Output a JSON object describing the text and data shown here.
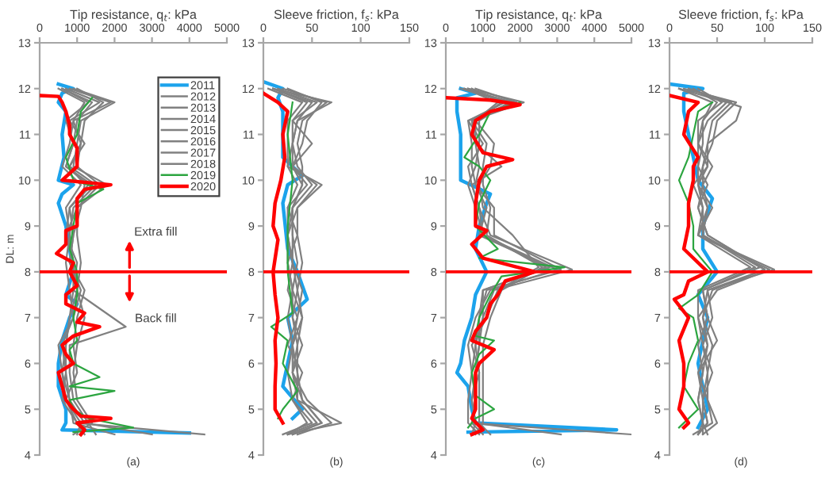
{
  "chart_data": [
    {
      "type": "line",
      "title": "Tip resistance, q$_{t}$: kPa",
      "xlabel": "(a)",
      "ylabel": "DL: m",
      "xlim": [
        0,
        5000
      ],
      "xticks": [
        0,
        1000,
        2000,
        3000,
        4000,
        5000
      ],
      "ylim": [
        4,
        13
      ],
      "yticks": [
        4,
        5,
        6,
        7,
        8,
        9,
        10,
        11,
        12,
        13
      ],
      "legend": "top right",
      "annotations": [
        "Extra fill",
        "Back fill"
      ],
      "ref_lines": [
        {
          "axis": "y",
          "value": 8,
          "color": "#ff0000"
        }
      ],
      "series": [
        {
          "name": "2011",
          "color": "#1ca3ec",
          "x": [
            500,
            900,
            600,
            500,
            700,
            600,
            650,
            500,
            900,
            600,
            500,
            700,
            800,
            900,
            700,
            1000,
            800,
            600,
            500,
            500,
            700,
            700,
            600,
            4000
          ],
          "values": [
            12.1,
            12.0,
            11.9,
            11.7,
            11.5,
            11.0,
            10.5,
            10.0,
            9.9,
            9.7,
            9.5,
            9.0,
            8.5,
            8.0,
            7.5,
            7.3,
            7.0,
            6.5,
            6.0,
            5.5,
            5.0,
            4.7,
            4.55,
            4.48
          ]
        },
        {
          "name": "2012",
          "color": "#808080",
          "x": [
            800,
            1900,
            900,
            1100,
            800,
            1500,
            900,
            800,
            900,
            1000,
            800,
            700,
            600,
            700,
            1000,
            4400
          ],
          "values": [
            12.0,
            11.7,
            11.3,
            10.8,
            10.3,
            9.9,
            9.4,
            8.8,
            8.2,
            7.6,
            7.0,
            6.4,
            5.8,
            5.2,
            4.7,
            4.45
          ]
        },
        {
          "name": "2013",
          "color": "#808080",
          "x": [
            600,
            1400,
            1000,
            900,
            700,
            1300,
            800,
            900,
            800,
            1100,
            900,
            600,
            700,
            800,
            1200,
            3000
          ],
          "values": [
            12.0,
            11.7,
            11.3,
            10.8,
            10.3,
            9.9,
            9.4,
            8.8,
            8.2,
            7.6,
            7.0,
            6.4,
            5.8,
            5.2,
            4.7,
            4.45
          ]
        },
        {
          "name": "2014",
          "color": "#808080",
          "x": [
            900,
            2000,
            1100,
            1000,
            900,
            1800,
            1000,
            700,
            1000,
            900,
            2300,
            800,
            800,
            900,
            1300,
            1500
          ],
          "values": [
            12.0,
            11.7,
            11.3,
            10.8,
            10.3,
            9.9,
            9.4,
            8.8,
            8.2,
            7.6,
            6.8,
            6.4,
            5.8,
            5.2,
            4.7,
            4.45
          ]
        },
        {
          "name": "2015",
          "color": "#808080",
          "x": [
            700,
            1600,
            800,
            1200,
            800,
            1200,
            1100,
            900,
            800,
            1200,
            1000,
            900,
            1000,
            700,
            1100,
            1000
          ],
          "values": [
            12.0,
            11.7,
            11.3,
            10.8,
            10.3,
            9.9,
            9.4,
            8.8,
            8.2,
            7.6,
            7.0,
            6.4,
            5.8,
            5.2,
            4.7,
            4.45
          ]
        },
        {
          "name": "2016",
          "color": "#808080",
          "x": [
            500,
            1200,
            900,
            800,
            600,
            1100,
            700,
            800,
            700,
            800,
            900,
            500,
            600,
            800,
            900,
            2000
          ],
          "values": [
            12.0,
            11.7,
            11.3,
            10.8,
            10.3,
            9.9,
            9.4,
            8.8,
            8.2,
            7.6,
            7.0,
            6.4,
            5.8,
            5.2,
            4.7,
            4.45
          ]
        },
        {
          "name": "2017",
          "color": "#808080",
          "x": [
            1000,
            1700,
            1200,
            1100,
            1000,
            1600,
            1000,
            1000,
            1100,
            1000,
            1200,
            1000,
            900,
            1000,
            1400,
            900
          ],
          "values": [
            12.0,
            11.7,
            11.3,
            10.8,
            10.3,
            9.9,
            9.4,
            8.8,
            8.2,
            7.6,
            7.0,
            6.4,
            5.8,
            5.2,
            4.7,
            4.45
          ]
        },
        {
          "name": "2018",
          "color": "#808080",
          "x": [
            600,
            1300,
            700,
            900,
            700,
            1400,
            800,
            700,
            900,
            900,
            800,
            700,
            700,
            600,
            1000,
            1200
          ],
          "values": [
            12.0,
            11.7,
            11.3,
            10.8,
            10.3,
            9.9,
            9.4,
            8.8,
            8.2,
            7.6,
            7.0,
            6.4,
            5.8,
            5.2,
            4.7,
            4.45
          ]
        },
        {
          "name": "2019",
          "color": "#2ca540",
          "x": [
            1400,
            1100,
            1000,
            700,
            900,
            1700,
            1000,
            900,
            800,
            1000,
            1000,
            900,
            1000,
            800,
            900,
            1600,
            800,
            2000,
            800,
            900,
            1300,
            2500,
            900
          ],
          "values": [
            11.8,
            11.5,
            11.0,
            10.5,
            10.0,
            9.8,
            9.5,
            9.0,
            8.5,
            8.0,
            7.5,
            7.0,
            6.5,
            6.3,
            6.0,
            5.7,
            5.5,
            5.4,
            5.2,
            5.0,
            4.8,
            4.6,
            4.5
          ]
        },
        {
          "name": "2020",
          "color": "#ff0000",
          "x": [
            0,
            500,
            600,
            700,
            800,
            800,
            1000,
            1000,
            600,
            1900,
            1200,
            1000,
            1000,
            1000,
            700,
            700,
            450,
            900,
            800,
            1000,
            700,
            700,
            1200,
            1000,
            1600,
            900,
            600,
            700,
            900,
            500,
            600,
            700,
            900,
            1100,
            1900,
            1000,
            1200,
            1100
          ],
          "values": [
            11.85,
            11.83,
            11.7,
            11.5,
            11.2,
            11.0,
            10.7,
            10.3,
            10.0,
            9.9,
            9.8,
            9.6,
            9.3,
            9.0,
            8.9,
            8.6,
            8.4,
            8.2,
            8.0,
            7.7,
            7.5,
            7.3,
            7.1,
            6.9,
            6.8,
            6.6,
            6.4,
            6.2,
            6.0,
            5.8,
            5.5,
            5.2,
            5.0,
            4.85,
            4.8,
            4.7,
            4.55,
            4.45
          ]
        }
      ]
    },
    {
      "type": "line",
      "title": "Sleeve friction, f$_{s}$: kPa",
      "xlabel": "(b)",
      "xlim": [
        0,
        150
      ],
      "xticks": [
        0,
        50,
        100,
        150
      ],
      "ylim": [
        4,
        13
      ],
      "yticks": [
        4,
        5,
        6,
        7,
        8,
        9,
        10,
        11,
        12,
        13
      ],
      "ref_lines": [
        {
          "axis": "y",
          "value": 8,
          "color": "#ff0000"
        }
      ],
      "series": [
        {
          "color": "#1ca3ec",
          "x": [
            0,
            20,
            15,
            20,
            20,
            40,
            25,
            20,
            25,
            35,
            45,
            25,
            30,
            25,
            20,
            40,
            30
          ],
          "values": [
            12.15,
            12.0,
            11.8,
            11.5,
            10.5,
            10.1,
            9.9,
            9.5,
            8.5,
            8.0,
            7.4,
            7.0,
            6.5,
            6.0,
            5.5,
            5.0,
            4.8
          ]
        },
        {
          "color": "#808080",
          "x": [
            10,
            70,
            35,
            30,
            35,
            50,
            30,
            30,
            30,
            35,
            30,
            35,
            30,
            40,
            60,
            30
          ],
          "values": [
            12.0,
            11.7,
            11.3,
            10.8,
            10.3,
            9.9,
            9.4,
            8.8,
            8.2,
            7.6,
            7.0,
            6.4,
            5.8,
            5.2,
            4.7,
            4.45
          ]
        },
        {
          "color": "#808080",
          "x": [
            15,
            55,
            30,
            50,
            30,
            45,
            25,
            35,
            25,
            30,
            40,
            30,
            35,
            35,
            80,
            25
          ],
          "values": [
            12.0,
            11.7,
            11.3,
            10.8,
            10.3,
            9.9,
            9.4,
            8.8,
            8.2,
            7.6,
            7.0,
            6.4,
            5.8,
            5.2,
            4.7,
            4.45
          ]
        },
        {
          "color": "#808080",
          "x": [
            5,
            40,
            25,
            25,
            25,
            60,
            35,
            25,
            30,
            40,
            35,
            25,
            40,
            30,
            50,
            20
          ],
          "values": [
            12.0,
            11.7,
            11.3,
            10.8,
            10.3,
            9.9,
            9.4,
            8.8,
            8.2,
            7.6,
            7.0,
            6.4,
            5.8,
            5.2,
            4.7,
            4.45
          ]
        },
        {
          "color": "#808080",
          "x": [
            20,
            65,
            40,
            35,
            40,
            40,
            30,
            30,
            35,
            30,
            30,
            40,
            30,
            45,
            70,
            35
          ],
          "values": [
            12.0,
            11.7,
            11.3,
            10.8,
            10.3,
            9.9,
            9.4,
            8.8,
            8.2,
            7.6,
            7.0,
            6.4,
            5.8,
            5.2,
            4.7,
            4.45
          ]
        },
        {
          "color": "#808080",
          "x": [
            10,
            45,
            30,
            30,
            25,
            35,
            25,
            25,
            25,
            30,
            25,
            30,
            25,
            30,
            45,
            25
          ],
          "values": [
            12.0,
            11.7,
            11.3,
            10.8,
            10.3,
            9.9,
            9.4,
            8.8,
            8.2,
            7.6,
            7.0,
            6.4,
            5.8,
            5.2,
            4.7,
            4.45
          ]
        },
        {
          "color": "#808080",
          "x": [
            25,
            60,
            45,
            40,
            30,
            55,
            35,
            35,
            40,
            35,
            40,
            35,
            35,
            40,
            60,
            30
          ],
          "values": [
            12.0,
            11.7,
            11.3,
            10.8,
            10.3,
            9.9,
            9.4,
            8.8,
            8.2,
            7.6,
            7.0,
            6.4,
            5.8,
            5.2,
            4.7,
            4.45
          ]
        },
        {
          "color": "#808080",
          "x": [
            10,
            50,
            35,
            30,
            30,
            40,
            30,
            25,
            30,
            25,
            35,
            30,
            30,
            35,
            55,
            25
          ],
          "values": [
            12.0,
            11.7,
            11.3,
            10.8,
            10.3,
            9.9,
            9.4,
            8.8,
            8.2,
            7.6,
            7.0,
            6.4,
            5.8,
            5.2,
            4.7,
            4.45
          ]
        },
        {
          "color": "#2ca540",
          "x": [
            30,
            25,
            30,
            25,
            25,
            30,
            8,
            25,
            20,
            35,
            20,
            15
          ],
          "values": [
            11.7,
            11.0,
            10.0,
            9.0,
            8.0,
            7.1,
            6.8,
            6.5,
            6.0,
            5.4,
            5.0,
            4.8
          ]
        },
        {
          "color": "#ff0000",
          "x": [
            0,
            15,
            25,
            20,
            22,
            18,
            12,
            10,
            15,
            10,
            12,
            15,
            12,
            13,
            12,
            12,
            20
          ],
          "values": [
            11.9,
            11.7,
            11.5,
            11.0,
            10.5,
            10.0,
            9.5,
            9.0,
            8.7,
            8.0,
            7.5,
            7.0,
            6.5,
            6.0,
            5.5,
            5.0,
            4.7
          ]
        }
      ]
    },
    {
      "type": "line",
      "title": "Tip resistance, q$_{t}$: kPa",
      "xlabel": "(c)",
      "xlim": [
        0,
        5000
      ],
      "xticks": [
        0,
        1000,
        2000,
        3000,
        4000,
        5000
      ],
      "ylim": [
        4,
        13
      ],
      "yticks": [
        4,
        5,
        6,
        7,
        8,
        9,
        10,
        11,
        12,
        13
      ],
      "ref_lines": [
        {
          "axis": "y",
          "value": 8,
          "color": "#ff0000"
        }
      ],
      "series": [
        {
          "color": "#1ca3ec",
          "x": [
            400,
            800,
            300,
            300,
            400,
            400,
            400,
            1200,
            1100,
            900,
            800,
            1100,
            800,
            700,
            500,
            400,
            300,
            600,
            700,
            800,
            4600,
            600
          ],
          "values": [
            12.0,
            11.9,
            11.8,
            11.5,
            11.0,
            10.5,
            10.0,
            9.7,
            9.5,
            9.0,
            8.5,
            8.0,
            7.5,
            7.0,
            6.5,
            6.0,
            5.8,
            5.5,
            5.0,
            4.7,
            4.55,
            4.5
          ]
        },
        {
          "color": "#808080",
          "x": [
            600,
            2100,
            700,
            800,
            900,
            800,
            1100,
            900,
            2800,
            1000,
            900,
            800,
            700,
            800,
            700,
            5000
          ],
          "values": [
            12.0,
            11.7,
            11.3,
            10.8,
            10.3,
            9.9,
            9.4,
            8.8,
            8.1,
            7.6,
            7.0,
            6.4,
            5.8,
            5.2,
            4.7,
            4.45
          ]
        },
        {
          "color": "#808080",
          "x": [
            500,
            1800,
            600,
            1000,
            600,
            700,
            900,
            1200,
            3400,
            1300,
            1000,
            900,
            800,
            700,
            800,
            3100
          ],
          "values": [
            12.0,
            11.7,
            11.3,
            10.8,
            10.3,
            9.9,
            9.4,
            8.8,
            8.05,
            7.6,
            7.0,
            6.4,
            5.8,
            5.2,
            4.7,
            4.45
          ]
        },
        {
          "color": "#808080",
          "x": [
            700,
            1500,
            800,
            1300,
            1200,
            900,
            1000,
            1800,
            2500,
            1400,
            1100,
            700,
            900,
            900,
            900,
            1200
          ],
          "values": [
            12.0,
            11.7,
            11.3,
            10.8,
            10.3,
            9.9,
            9.4,
            8.8,
            8.1,
            7.6,
            7.0,
            6.4,
            5.8,
            5.2,
            4.7,
            4.45
          ]
        },
        {
          "color": "#808080",
          "x": [
            400,
            1700,
            900,
            900,
            800,
            600,
            800,
            1000,
            3000,
            1200,
            800,
            600,
            700,
            600,
            600,
            900
          ],
          "values": [
            12.0,
            11.7,
            11.3,
            10.8,
            10.3,
            9.9,
            9.4,
            8.8,
            8.05,
            7.6,
            7.0,
            6.4,
            5.8,
            5.2,
            4.7,
            4.45
          ]
        },
        {
          "color": "#808080",
          "x": [
            800,
            1900,
            700,
            1100,
            1000,
            1000,
            1200,
            1100,
            2600,
            1500,
            1200,
            1000,
            1000,
            1000,
            1000,
            800
          ],
          "values": [
            12.0,
            11.7,
            11.3,
            10.8,
            10.3,
            9.9,
            9.4,
            8.8,
            8.1,
            7.6,
            7.0,
            6.4,
            5.8,
            5.2,
            4.7,
            4.45
          ]
        },
        {
          "color": "#808080",
          "x": [
            600,
            1600,
            600,
            700,
            700,
            800,
            1300,
            1300,
            3100,
            1100,
            900,
            900,
            800,
            800,
            700,
            1000
          ],
          "values": [
            12.0,
            11.7,
            11.3,
            10.8,
            10.3,
            9.9,
            9.4,
            8.8,
            8.05,
            7.6,
            7.0,
            6.4,
            5.8,
            5.2,
            4.7,
            4.45
          ]
        },
        {
          "color": "#808080",
          "x": [
            500,
            1400,
            800,
            800,
            1500,
            700,
            900,
            1000,
            2700,
            1000,
            1000,
            800,
            900,
            700,
            800,
            700
          ],
          "values": [
            12.0,
            11.7,
            11.3,
            10.8,
            10.3,
            9.9,
            9.4,
            8.8,
            8.1,
            7.6,
            7.0,
            6.4,
            5.8,
            5.2,
            4.7,
            4.45
          ]
        },
        {
          "color": "#2ca540",
          "x": [
            2000,
            1200,
            900,
            500,
            900,
            1200,
            900,
            800,
            1400,
            900,
            3200,
            1500,
            1200,
            900,
            800,
            1300,
            900,
            700,
            800,
            1300,
            800,
            600
          ],
          "values": [
            11.7,
            11.5,
            11.0,
            10.5,
            10.3,
            10.0,
            9.5,
            9.0,
            8.5,
            8.3,
            8.1,
            7.9,
            7.5,
            7.0,
            6.6,
            6.5,
            6.2,
            5.8,
            5.3,
            5.0,
            4.8,
            4.6
          ]
        },
        {
          "color": "#ff0000",
          "x": [
            0,
            1200,
            2000,
            1200,
            800,
            700,
            1000,
            1800,
            1100,
            900,
            800,
            800,
            1100,
            700,
            1000,
            2400,
            1600,
            1400,
            1200,
            1100,
            800,
            700,
            1300,
            900,
            800,
            800,
            800,
            700,
            1000,
            700
          ],
          "values": [
            11.8,
            11.75,
            11.65,
            11.5,
            11.3,
            11.0,
            10.6,
            10.45,
            10.3,
            10.0,
            9.5,
            9.0,
            8.9,
            8.6,
            8.3,
            8.0,
            7.8,
            7.5,
            7.3,
            7.0,
            6.7,
            6.5,
            6.3,
            6.0,
            5.8,
            5.5,
            5.0,
            4.8,
            4.55,
            4.45
          ]
        }
      ]
    },
    {
      "type": "line",
      "title": "Sleeve friction, f$_{s}$: kPa",
      "xlabel": "(d)",
      "xlim": [
        0,
        150
      ],
      "xticks": [
        0,
        50,
        100,
        150
      ],
      "ylim": [
        4,
        13
      ],
      "yticks": [
        4,
        5,
        6,
        7,
        8,
        9,
        10,
        11,
        12,
        13
      ],
      "ref_lines": [
        {
          "axis": "y",
          "value": 8,
          "color": "#ff0000"
        }
      ],
      "series": [
        {
          "color": "#1ca3ec",
          "x": [
            0,
            35,
            15,
            15,
            20,
            30,
            45,
            40,
            35,
            35,
            50,
            30,
            40,
            35,
            30,
            35,
            40,
            35,
            30
          ],
          "values": [
            12.1,
            12.0,
            11.9,
            11.5,
            11.0,
            10.0,
            9.6,
            9.3,
            9.0,
            8.5,
            8.0,
            7.5,
            7.0,
            6.5,
            6.0,
            5.5,
            5.0,
            4.8,
            4.6
          ]
        },
        {
          "color": "#808080",
          "x": [
            20,
            75,
            70,
            40,
            40,
            30,
            35,
            30,
            110,
            40,
            45,
            35,
            40,
            35,
            40,
            30
          ],
          "values": [
            12.0,
            11.6,
            11.3,
            10.8,
            10.3,
            9.9,
            9.4,
            8.8,
            8.05,
            7.6,
            7.0,
            6.4,
            5.8,
            5.2,
            4.7,
            4.45
          ]
        },
        {
          "color": "#808080",
          "x": [
            10,
            60,
            40,
            30,
            45,
            35,
            40,
            35,
            100,
            45,
            35,
            40,
            35,
            30,
            35,
            35
          ],
          "values": [
            12.0,
            11.7,
            11.3,
            10.8,
            10.3,
            9.9,
            9.4,
            8.8,
            8.05,
            7.6,
            7.0,
            6.4,
            5.8,
            5.2,
            4.7,
            4.45
          ]
        },
        {
          "color": "#808080",
          "x": [
            25,
            50,
            35,
            35,
            30,
            40,
            30,
            40,
            95,
            35,
            40,
            50,
            30,
            40,
            45,
            25
          ],
          "values": [
            12.0,
            11.7,
            11.3,
            10.8,
            10.3,
            9.9,
            9.4,
            8.8,
            8.1,
            7.6,
            7.0,
            6.5,
            5.8,
            5.2,
            4.7,
            4.45
          ]
        },
        {
          "color": "#808080",
          "x": [
            15,
            70,
            50,
            45,
            35,
            30,
            45,
            30,
            105,
            50,
            30,
            35,
            45,
            35,
            40,
            30
          ],
          "values": [
            12.0,
            11.7,
            11.3,
            10.8,
            10.3,
            9.9,
            9.4,
            8.8,
            8.05,
            7.6,
            7.0,
            6.4,
            5.8,
            5.2,
            4.7,
            4.45
          ]
        },
        {
          "color": "#808080",
          "x": [
            30,
            55,
            30,
            30,
            40,
            25,
            35,
            35,
            90,
            35,
            40,
            30,
            35,
            30,
            35,
            40
          ],
          "values": [
            12.0,
            11.7,
            11.3,
            10.8,
            10.3,
            9.9,
            9.4,
            8.8,
            8.1,
            7.6,
            7.0,
            6.4,
            5.8,
            5.2,
            4.7,
            4.45
          ]
        },
        {
          "color": "#808080",
          "x": [
            20,
            65,
            45,
            40,
            35,
            35,
            30,
            40,
            100,
            40,
            35,
            45,
            40,
            40,
            50,
            35
          ],
          "values": [
            12.0,
            11.7,
            11.3,
            10.8,
            10.3,
            9.9,
            9.4,
            8.8,
            8.05,
            7.6,
            7.0,
            6.4,
            5.8,
            5.2,
            4.7,
            4.45
          ]
        },
        {
          "color": "#808080",
          "x": [
            10,
            45,
            35,
            30,
            30,
            30,
            40,
            30,
            85,
            30,
            30,
            40,
            30,
            35,
            35,
            30
          ],
          "values": [
            12.0,
            11.7,
            11.3,
            10.8,
            10.3,
            9.9,
            9.4,
            8.8,
            8.1,
            7.6,
            7.0,
            6.4,
            5.8,
            5.2,
            4.7,
            4.45
          ]
        },
        {
          "color": "#2ca540",
          "x": [
            45,
            30,
            25,
            20,
            10,
            20,
            25,
            25,
            45,
            30,
            10,
            25,
            30,
            20,
            15,
            30,
            10
          ],
          "values": [
            11.7,
            11.5,
            11.0,
            10.5,
            10.0,
            9.5,
            9.0,
            8.5,
            8.0,
            7.5,
            7.2,
            7.0,
            6.5,
            6.0,
            5.5,
            5.0,
            4.6
          ]
        },
        {
          "color": "#ff0000",
          "x": [
            0,
            30,
            20,
            15,
            30,
            25,
            25,
            20,
            20,
            15,
            40,
            20,
            15,
            5,
            20,
            10,
            15,
            15,
            10,
            20,
            15
          ],
          "values": [
            11.85,
            11.7,
            11.5,
            11.0,
            10.5,
            10.3,
            10.0,
            9.5,
            9.0,
            8.5,
            8.0,
            7.8,
            7.5,
            7.4,
            7.0,
            6.5,
            6.0,
            5.5,
            5.0,
            4.7,
            4.6
          ]
        }
      ]
    }
  ]
}
